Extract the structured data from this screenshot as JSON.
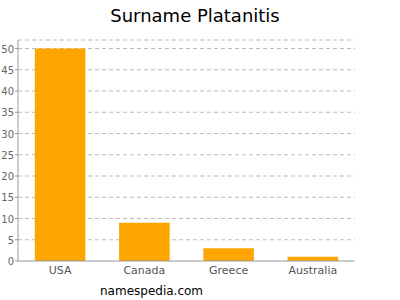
{
  "chart_data": {
    "type": "bar",
    "title": "Surname Platanitis",
    "categories": [
      "USA",
      "Canada",
      "Greece",
      "Australia"
    ],
    "values": [
      50,
      9,
      3,
      1
    ],
    "color": "#ffa500",
    "ylim": [
      0,
      52
    ],
    "yticks": [
      0,
      5,
      10,
      15,
      20,
      25,
      30,
      35,
      40,
      45,
      50
    ],
    "grid": true,
    "source": "namespedia.com"
  }
}
